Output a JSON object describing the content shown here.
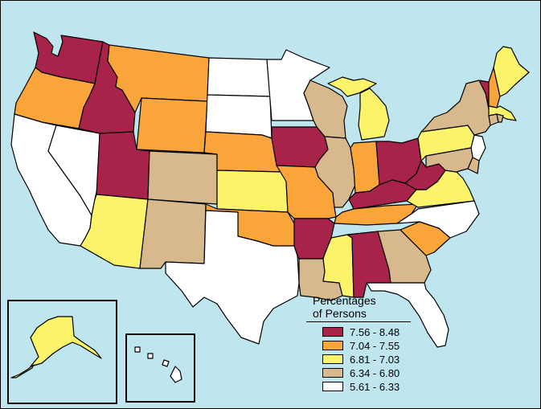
{
  "legend": {
    "title_line1": "Percentages",
    "title_line2": "of Persons",
    "items": [
      {
        "label": "7.56 - 8.48",
        "color": "#a8234a"
      },
      {
        "label": "7.04 - 7.55",
        "color": "#f9a53a"
      },
      {
        "label": "6.81 - 7.03",
        "color": "#fbf46a"
      },
      {
        "label": "6.34 - 6.80",
        "color": "#d8b98d"
      },
      {
        "label": "5.61 - 6.33",
        "color": "#ffffff"
      }
    ]
  },
  "colors": {
    "water": "#bfe6ee",
    "border": "#000000"
  },
  "states": [
    {
      "name": "Washington",
      "class": 0
    },
    {
      "name": "Oregon",
      "class": 1
    },
    {
      "name": "California",
      "class": 4
    },
    {
      "name": "Nevada",
      "class": 4
    },
    {
      "name": "Idaho",
      "class": 0
    },
    {
      "name": "Montana",
      "class": 1
    },
    {
      "name": "Wyoming",
      "class": 1
    },
    {
      "name": "Utah",
      "class": 0
    },
    {
      "name": "Arizona",
      "class": 2
    },
    {
      "name": "Colorado",
      "class": 3
    },
    {
      "name": "New Mexico",
      "class": 3
    },
    {
      "name": "North Dakota",
      "class": 4
    },
    {
      "name": "South Dakota",
      "class": 4
    },
    {
      "name": "Nebraska",
      "class": 1
    },
    {
      "name": "Kansas",
      "class": 2
    },
    {
      "name": "Oklahoma",
      "class": 1
    },
    {
      "name": "Texas",
      "class": 4
    },
    {
      "name": "Minnesota",
      "class": 4
    },
    {
      "name": "Iowa",
      "class": 0
    },
    {
      "name": "Missouri",
      "class": 1
    },
    {
      "name": "Arkansas",
      "class": 0
    },
    {
      "name": "Louisiana",
      "class": 3
    },
    {
      "name": "Wisconsin",
      "class": 3
    },
    {
      "name": "Illinois",
      "class": 3
    },
    {
      "name": "Michigan",
      "class": 2
    },
    {
      "name": "Indiana",
      "class": 1
    },
    {
      "name": "Ohio",
      "class": 0
    },
    {
      "name": "Kentucky",
      "class": 0
    },
    {
      "name": "Tennessee",
      "class": 1
    },
    {
      "name": "Mississippi",
      "class": 2
    },
    {
      "name": "Alabama",
      "class": 0
    },
    {
      "name": "Georgia",
      "class": 3
    },
    {
      "name": "Florida",
      "class": 4
    },
    {
      "name": "South Carolina",
      "class": 1
    },
    {
      "name": "North Carolina",
      "class": 4
    },
    {
      "name": "Virginia",
      "class": 2
    },
    {
      "name": "West Virginia",
      "class": 0
    },
    {
      "name": "Pennsylvania",
      "class": 2
    },
    {
      "name": "New York",
      "class": 3
    },
    {
      "name": "New Jersey",
      "class": 4
    },
    {
      "name": "Maryland",
      "class": 3
    },
    {
      "name": "Delaware",
      "class": 3
    },
    {
      "name": "Vermont",
      "class": 0
    },
    {
      "name": "New Hampshire",
      "class": 1
    },
    {
      "name": "Maine",
      "class": 2
    },
    {
      "name": "Massachusetts",
      "class": 2
    },
    {
      "name": "Connecticut",
      "class": 3
    },
    {
      "name": "Rhode Island",
      "class": 3
    },
    {
      "name": "Alaska",
      "class": 2
    },
    {
      "name": "Hawaii",
      "class": 4
    }
  ]
}
